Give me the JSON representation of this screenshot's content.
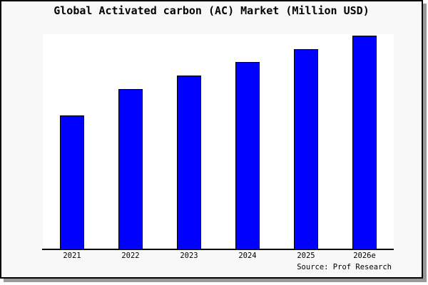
{
  "title": "Global Activated carbon (AC) Market (Million USD)",
  "source_credit": "Source: Prof Research",
  "colors": {
    "bar_fill": "#0000ff",
    "bar_border": "#000000",
    "figure_background": "#f8f8f8",
    "plot_background": "#ffffff",
    "axis_line": "#000000",
    "frame_border": "#000000",
    "drop_shadow": "#999999",
    "text": "#000000"
  },
  "chart_data": {
    "type": "bar",
    "title": "Global Activated carbon (AC) Market (Million USD)",
    "categories": [
      "2021",
      "2022",
      "2023",
      "2024",
      "2025",
      "2026e"
    ],
    "values": [
      62.7,
      75.0,
      81.3,
      87.7,
      93.7,
      100.0
    ],
    "values_note": "Relative bar heights as % of tallest bar (2026e); chart shows no numeric y-axis scale",
    "xlabel": "",
    "ylabel": "",
    "y_axis_ticks": [],
    "grid": false,
    "legend": false,
    "bar_color": "#0000ff",
    "annotation": "Source: Prof Research"
  }
}
